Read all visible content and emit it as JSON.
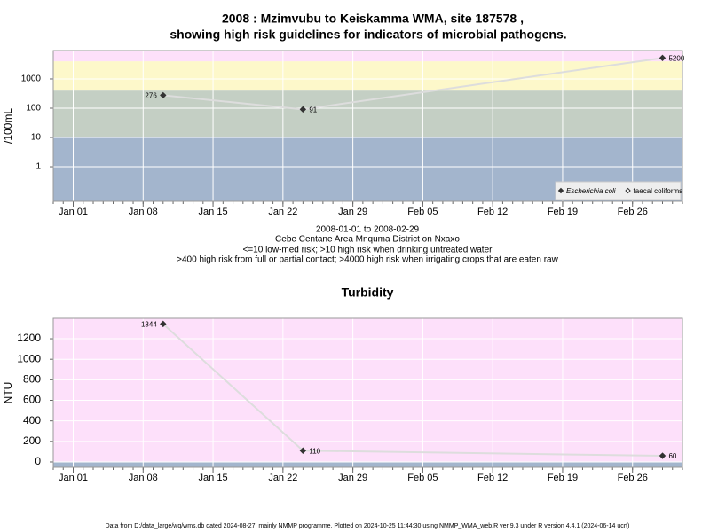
{
  "chart_data": [
    {
      "type": "line",
      "title": [
        "2008 : Mzimvubu to Keiskamma WMA, site 187578 ,",
        "showing high risk guidelines for indicators of microbial pathogens."
      ],
      "ylabel": "/100mL",
      "log": true,
      "x": [
        "Jan 10",
        "Jan 24",
        "Feb 29"
      ],
      "series": [
        {
          "name": "Escherichia coli",
          "color": "#333333",
          "marker": "filled-diamond",
          "values": [
            276,
            91,
            5200
          ]
        },
        {
          "name": "faecal coliforms",
          "color": "#333333",
          "marker": "open-diamond",
          "values": [
            null,
            null,
            null
          ]
        }
      ],
      "line_color": "#dddddd",
      "xlim": [
        "Dec 30",
        "Mar 02"
      ],
      "xticks": [
        "Jan 01",
        "Jan 08",
        "Jan 15",
        "Jan 22",
        "Jan 29",
        "Feb 05",
        "Feb 12",
        "Feb 19",
        "Feb 26"
      ],
      "ylim": [
        0.066,
        9300
      ],
      "yticks": [
        1,
        10,
        100,
        1000
      ],
      "band_thresholds": [
        10,
        400,
        4000
      ],
      "band_colors": [
        "#a3b5cd",
        "#c4cfc4",
        "#fdf8ca",
        "#fde0fa"
      ],
      "grid": true,
      "legend": "bottom-right",
      "notes": [
        "2008-01-01 to 2008-02-29",
        "Cebe Centane Area Mnquma District on Nxaxo",
        "<=10 low-med risk; >10 high risk when drinking untreated water",
        ">400 high risk from full or partial contact; >4000 high risk when irrigating crops that are eaten raw"
      ]
    },
    {
      "type": "line",
      "title": [
        "Turbidity"
      ],
      "ylabel": "NTU",
      "log": false,
      "x": [
        "Jan 10",
        "Jan 24",
        "Feb 29"
      ],
      "series": [
        {
          "name": "Turbidity",
          "color": "#333333",
          "marker": "filled-diamond",
          "values": [
            1344,
            110,
            60
          ]
        }
      ],
      "line_color": "#dddddd",
      "xlim": [
        "Dec 30",
        "Mar 02"
      ],
      "xticks": [
        "Jan 01",
        "Jan 08",
        "Jan 15",
        "Jan 22",
        "Jan 29",
        "Feb 05",
        "Feb 12",
        "Feb 19",
        "Feb 26"
      ],
      "ylim": [
        -52,
        1399
      ],
      "yticks": [
        0,
        200,
        400,
        600,
        800,
        1000,
        1200
      ],
      "band_thresholds": [
        5
      ],
      "band_colors": [
        "#a3b5cd",
        "#fde0fa"
      ],
      "grid": true
    }
  ],
  "footer": "Data from D:/data_large/wq/wms.db dated 2024-08-27, mainly NMMP programme. Plotted on 2024-10-25 11:44:30 using NMMP_WMA_web.R ver 9.3 under R version 4.4.1 (2024-06-14 ucrt)"
}
